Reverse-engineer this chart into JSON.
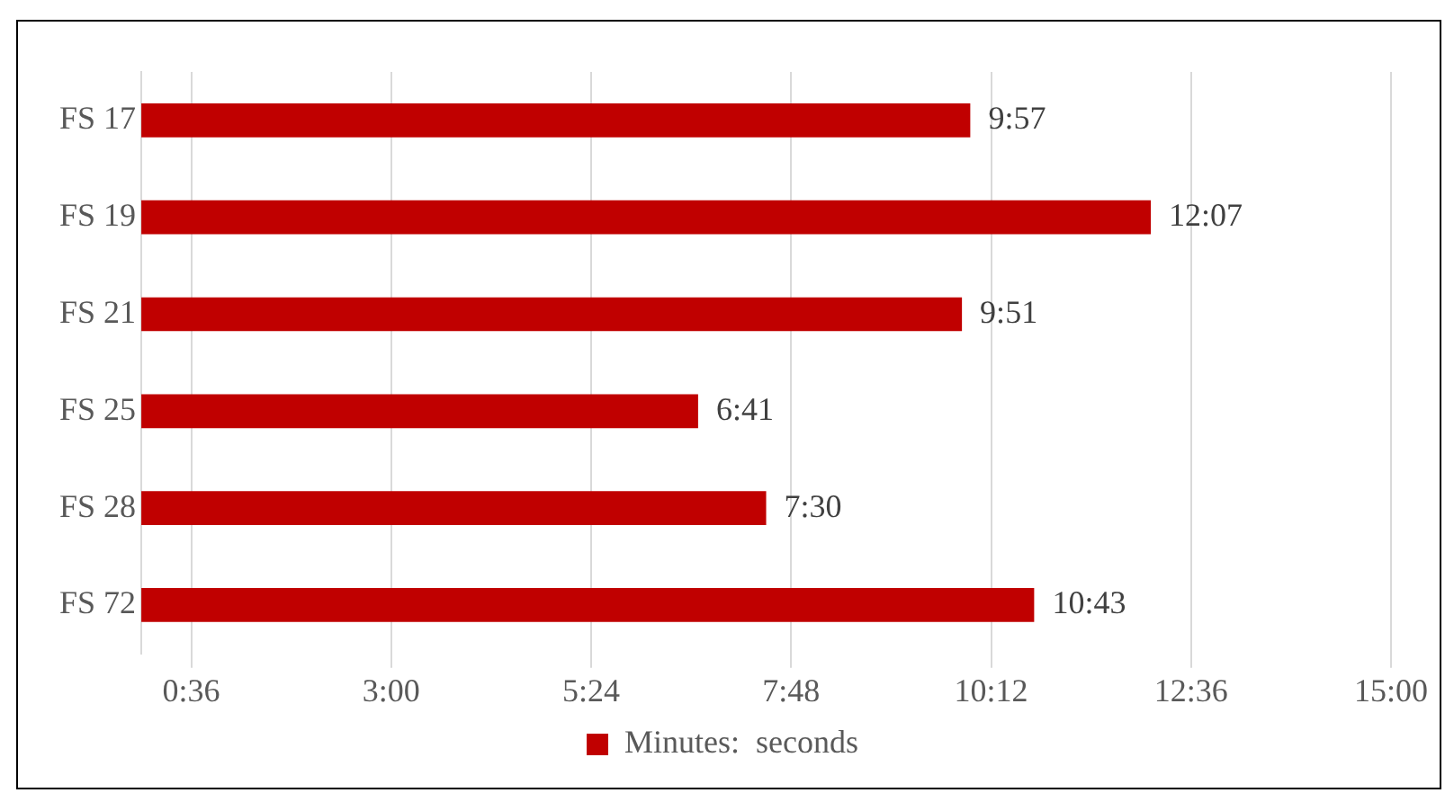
{
  "chart_data": {
    "type": "bar",
    "orientation": "horizontal",
    "categories": [
      "FS 17",
      "FS 19",
      "FS 21",
      "FS 25",
      "FS 28",
      "FS 72"
    ],
    "series": [
      {
        "name": "Minutes:  seconds",
        "color": "#c00000",
        "values": [
          9.95,
          12.1167,
          9.85,
          6.6833,
          7.5,
          10.7167
        ],
        "value_labels": [
          "9:57",
          "12:07",
          "9:51",
          "6:41",
          "7:30",
          "10:43"
        ]
      }
    ],
    "xlim": [
      0,
      15
    ],
    "xticks": [
      {
        "value": 0.6,
        "label": "0:36"
      },
      {
        "value": 3,
        "label": "3:00"
      },
      {
        "value": 5.4,
        "label": "5:24"
      },
      {
        "value": 7.8,
        "label": "7:48"
      },
      {
        "value": 10.2,
        "label": "10:12"
      },
      {
        "value": 12.6,
        "label": "12:36"
      },
      {
        "value": 15,
        "label": "15:00"
      }
    ],
    "grid": "x",
    "legend": "bottom"
  }
}
